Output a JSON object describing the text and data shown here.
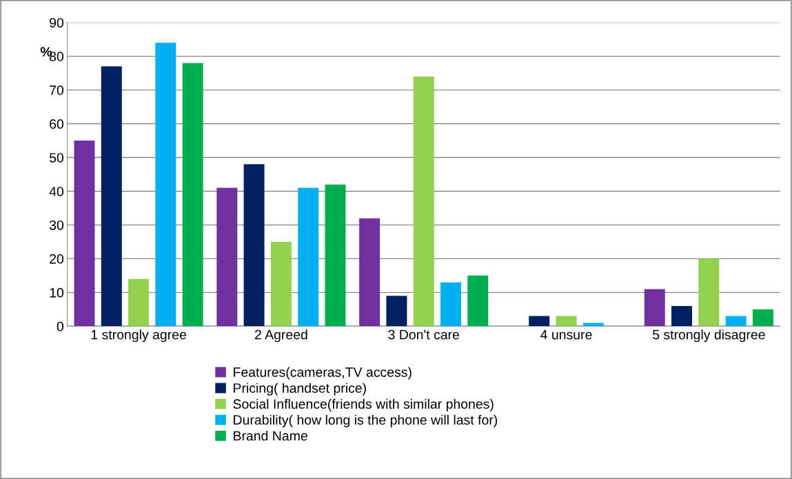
{
  "chart_data": {
    "type": "bar",
    "ylabel": "%",
    "categories": [
      "1 strongly agree",
      "2 Agreed",
      "3 Don't care",
      "4 unsure",
      "5 strongly disagree"
    ],
    "series": [
      {
        "name": "Features(cameras,TV access)",
        "color": "#7030a0",
        "values": [
          55,
          41,
          32,
          0,
          11
        ]
      },
      {
        "name": "Pricing( handset price)",
        "color": "#002060",
        "values": [
          77,
          48,
          9,
          3,
          6
        ]
      },
      {
        "name": "Social Influence(friends with similar phones)",
        "color": "#92d050",
        "values": [
          14,
          25,
          74,
          3,
          20
        ]
      },
      {
        "name": "Durability( how long is the phone will last for)",
        "color": "#00b0f0",
        "values": [
          84,
          41,
          13,
          1,
          3
        ]
      },
      {
        "name": "Brand Name",
        "color": "#00b050",
        "values": [
          78,
          42,
          15,
          0,
          5
        ]
      }
    ],
    "ylim": [
      0,
      90
    ],
    "yticks": [
      0,
      10,
      20,
      30,
      40,
      50,
      60,
      70,
      80,
      90
    ],
    "grid": "y",
    "legend": "bottom"
  }
}
